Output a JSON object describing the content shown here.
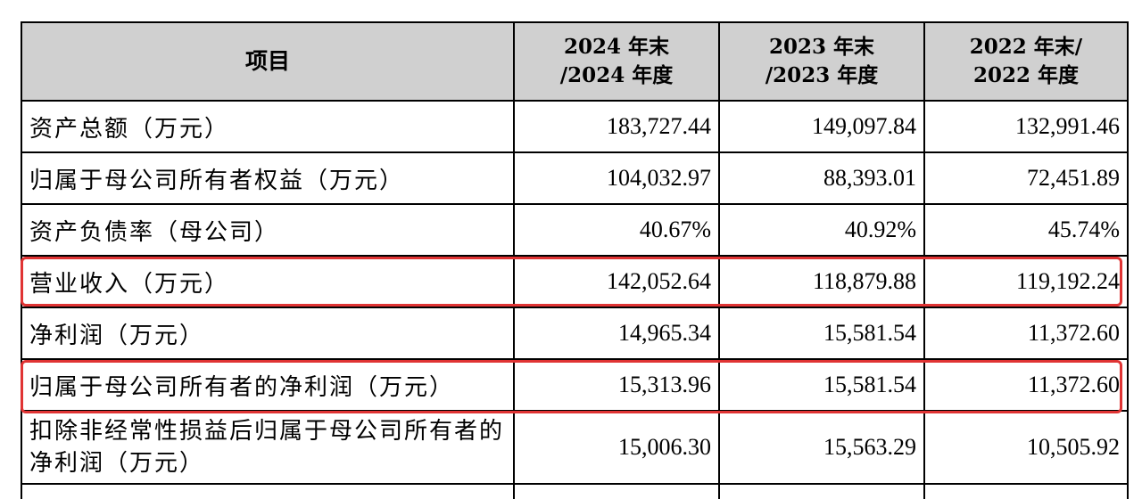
{
  "table": {
    "headers": {
      "item": "项目",
      "col_2024_line1": "2024 年末",
      "col_2024_line2": "/2024 年度",
      "col_2023_line1": "2023 年末",
      "col_2023_line2": "/2023 年度",
      "col_2022_line1": "2022 年末/",
      "col_2022_line2": "2022 年度"
    },
    "rows": [
      {
        "label": "资产总额（万元）",
        "v2024": "183,727.44",
        "v2023": "149,097.84",
        "v2022": "132,991.46"
      },
      {
        "label": "归属于母公司所有者权益（万元）",
        "v2024": "104,032.97",
        "v2023": "88,393.01",
        "v2022": "72,451.89"
      },
      {
        "label": "资产负债率（母公司）",
        "v2024": "40.67%",
        "v2023": "40.92%",
        "v2022": "45.74%"
      },
      {
        "label": "营业收入（万元）",
        "v2024": "142,052.64",
        "v2023": "118,879.88",
        "v2022": "119,192.24",
        "highlighted": true
      },
      {
        "label": "净利润（万元）",
        "v2024": "14,965.34",
        "v2023": "15,581.54",
        "v2022": "11,372.60"
      },
      {
        "label": "归属于母公司所有者的净利润（万元）",
        "v2024": "15,313.96",
        "v2023": "15,581.54",
        "v2022": "11,372.60",
        "highlighted": true
      },
      {
        "label": "扣除非经常性损益后归属于母公司所有者的净利润（万元）",
        "v2024": "15,006.30",
        "v2023": "15,563.29",
        "v2022": "10,505.92"
      }
    ]
  },
  "colors": {
    "header_bg": "#d0d0d0",
    "border": "#000000",
    "highlight": "#e03434"
  }
}
